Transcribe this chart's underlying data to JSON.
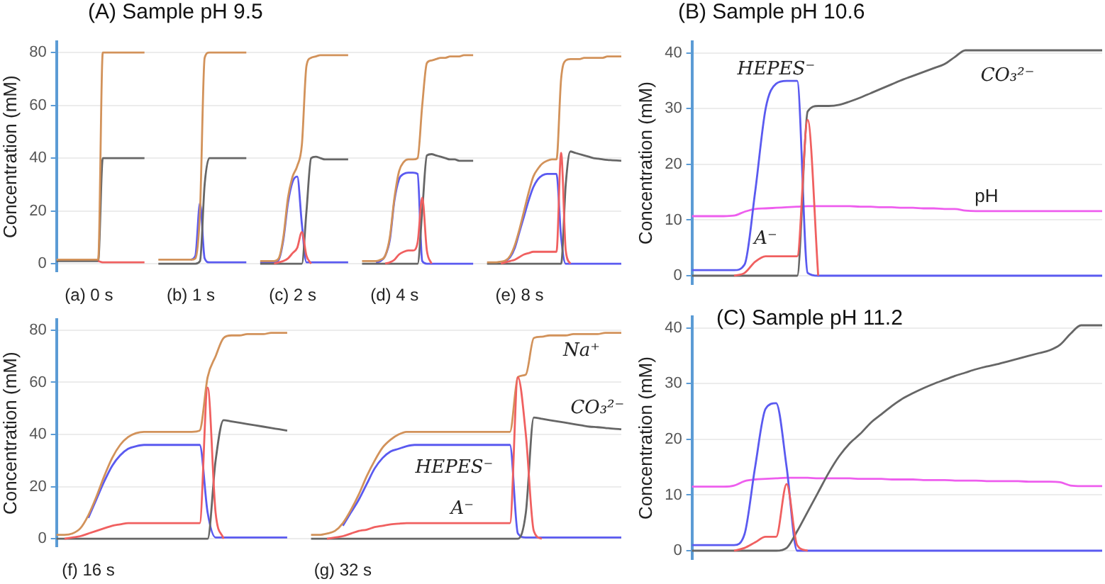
{
  "chart_data": [
    {
      "type": "line",
      "title": "(A) Sample pH 9.5",
      "ylabel": "Concentration (mM)",
      "marker": "none",
      "grid": "y",
      "ylim": [
        -3,
        84
      ],
      "yticks": [
        0,
        20,
        40,
        60,
        80
      ],
      "categories": [
        null,
        null,
        null,
        null,
        null,
        null,
        null,
        "(a) 0 s",
        null,
        null,
        null,
        null,
        null,
        null,
        null,
        null,
        null,
        null,
        null,
        null,
        null,
        null,
        null,
        null,
        null,
        null,
        null,
        null,
        null,
        "(b) 1 s",
        null,
        null,
        null,
        null,
        null,
        null,
        null,
        null,
        null,
        null,
        null,
        null,
        null,
        null,
        null,
        null,
        null,
        null,
        null,
        null,
        null,
        "(c) 2 s",
        null,
        null,
        null,
        null,
        null,
        null,
        null,
        null,
        null,
        null,
        null,
        null,
        null,
        null,
        null,
        null,
        null,
        null,
        null,
        null,
        null,
        "(d) 4 s",
        null,
        null,
        null,
        null,
        null,
        null,
        null,
        null,
        null,
        null,
        null,
        null,
        null,
        null,
        null,
        null,
        null,
        null,
        null,
        null,
        null,
        null,
        null,
        null,
        null,
        null,
        "(e) 8 s",
        null,
        null,
        null,
        null,
        null,
        null,
        null,
        null,
        null,
        null,
        null,
        null,
        null,
        null,
        null,
        null,
        null,
        null,
        null,
        null,
        null,
        null
      ],
      "series": [
        {
          "color": "#d2925a",
          "values": [
            1.5,
            1.5,
            1.5,
            1.5,
            1.5,
            1.5,
            1.5,
            1.5,
            1.5,
            1.5,
            80,
            80,
            80,
            80,
            80,
            80,
            80,
            80,
            80,
            80,
            null,
            null,
            1.5,
            1.5,
            1.5,
            1.5,
            1.5,
            1.5,
            1.5,
            1.5,
            2,
            20,
            78,
            80,
            80,
            80,
            80,
            80,
            80,
            80,
            80,
            80,
            null,
            null,
            1,
            1,
            1,
            1,
            2,
            10,
            25,
            33,
            37,
            45,
            75,
            78,
            78.5,
            79,
            79,
            79,
            79,
            79,
            79,
            79,
            null,
            null,
            1,
            1,
            1,
            1,
            1.5,
            3,
            10,
            25,
            35,
            38.5,
            39.5,
            39.5,
            40,
            60,
            76,
            77,
            77.5,
            78,
            78,
            78.5,
            78.5,
            78.5,
            79,
            79,
            79,
            null,
            null,
            0.5,
            0.5,
            0.5,
            0.8,
            1.2,
            3,
            7,
            13,
            20,
            27,
            33,
            36,
            38,
            39,
            39.5,
            39.5,
            70,
            77,
            77.5,
            77.5,
            77.5,
            78,
            78,
            78,
            78,
            78,
            78.5,
            78.5,
            78.5,
            78.5
          ]
        },
        {
          "color": "#666666",
          "values": [
            1,
            1,
            1,
            1,
            1,
            1,
            1,
            1,
            1,
            1,
            40,
            40,
            40,
            40,
            40,
            40,
            40,
            40,
            40,
            40,
            null,
            null,
            0,
            0,
            0,
            0,
            0,
            0,
            0,
            0,
            0,
            1,
            30,
            40,
            40,
            40,
            40,
            40,
            40,
            40,
            40,
            40,
            null,
            null,
            0,
            0,
            0,
            0,
            0,
            0,
            0,
            0,
            0,
            0,
            20,
            40,
            40.5,
            40,
            39.5,
            39.5,
            39.5,
            39.5,
            39.5,
            39.5,
            null,
            null,
            0,
            0,
            0,
            0,
            0,
            0,
            0,
            0,
            0,
            0,
            0,
            0,
            0,
            20,
            41,
            41.5,
            41,
            40.5,
            40,
            39.5,
            39.5,
            39,
            39,
            39,
            39,
            null,
            null,
            0,
            0,
            0,
            0,
            0,
            0,
            0,
            0,
            0,
            0,
            0,
            0,
            0,
            0,
            0,
            0,
            0,
            30,
            42.5,
            42,
            41.5,
            41,
            40.5,
            40,
            39.8,
            39.5,
            39.3,
            39.2,
            39.1,
            39
          ]
        },
        {
          "color": "#5a5af0",
          "values": [
            null,
            null,
            null,
            null,
            null,
            null,
            null,
            null,
            null,
            null,
            null,
            null,
            null,
            null,
            null,
            null,
            null,
            null,
            null,
            null,
            null,
            null,
            null,
            null,
            null,
            null,
            null,
            null,
            null,
            1.5,
            3,
            23,
            2,
            0.5,
            0.5,
            0.5,
            0.5,
            0.5,
            0.5,
            0.5,
            0.5,
            0.5,
            null,
            null,
            0.5,
            0.5,
            0.5,
            0.5,
            1.5,
            9,
            23,
            31,
            33,
            15,
            0.5,
            0.5,
            0.5,
            0.5,
            0.5,
            0.5,
            0.5,
            0.5,
            0.5,
            0.5,
            null,
            null,
            null,
            null,
            null,
            0.5,
            1,
            3,
            9,
            24,
            32,
            34,
            34.5,
            34.5,
            34,
            1,
            0,
            0,
            0,
            0,
            0,
            0,
            0,
            0,
            0,
            0,
            0,
            null,
            null,
            null,
            null,
            null,
            null,
            1,
            2.5,
            6,
            12,
            18,
            24,
            29,
            32,
            33.5,
            34,
            34,
            34,
            10,
            0,
            0,
            0,
            0,
            0,
            0,
            0,
            0,
            0,
            0,
            0,
            0,
            0
          ]
        },
        {
          "color": "#f06060",
          "values": [
            null,
            null,
            null,
            null,
            null,
            null,
            null,
            null,
            null,
            1,
            0.5,
            0.5,
            0.5,
            0.5,
            0.5,
            0.5,
            0.5,
            0.5,
            0.5,
            0.5,
            null,
            null,
            null,
            null,
            null,
            null,
            null,
            null,
            null,
            null,
            null,
            null,
            null,
            null,
            null,
            null,
            null,
            null,
            null,
            null,
            null,
            null,
            null,
            null,
            null,
            null,
            null,
            0,
            0.5,
            1,
            2,
            4,
            6,
            12,
            3,
            0,
            null,
            null,
            null,
            null,
            null,
            null,
            null,
            null,
            null,
            null,
            null,
            null,
            null,
            null,
            null,
            0,
            0.5,
            1.5,
            3.5,
            4.5,
            5,
            5,
            8,
            25,
            5,
            0,
            null,
            null,
            null,
            null,
            null,
            null,
            null,
            null,
            null,
            null,
            null,
            null,
            null,
            null,
            0,
            0.5,
            1,
            1.5,
            2.5,
            3.5,
            4,
            4.5,
            4.5,
            4.5,
            4.5,
            4.5,
            4.5,
            42,
            5,
            0,
            null,
            null,
            null,
            null,
            null,
            null,
            null,
            null,
            null,
            null,
            null
          ]
        }
      ]
    },
    {
      "type": "line",
      "ylabel": "Concentration (mM)",
      "marker": "none",
      "grid": "y",
      "ylim": [
        -3,
        84
      ],
      "yticks": [
        0,
        20,
        40,
        60,
        80
      ],
      "categories": [
        null,
        null,
        null,
        null,
        "(f) 16 s",
        null,
        null,
        null,
        null,
        null,
        null,
        null,
        null,
        null,
        null,
        null,
        null,
        null,
        null,
        null,
        null,
        null,
        null,
        null,
        null,
        null,
        null,
        null,
        null,
        null,
        null,
        null,
        null,
        null,
        null,
        null,
        "(g) 32 s",
        null,
        null,
        null,
        null,
        null,
        null,
        null,
        null,
        null,
        null,
        null,
        null,
        null,
        null,
        null,
        null,
        null,
        null,
        null,
        null,
        null,
        null,
        null,
        null,
        null,
        null,
        null,
        null,
        null,
        null,
        null,
        null,
        null,
        null,
        null
      ],
      "series": [
        {
          "name": "Na⁺",
          "color": "#d2925a",
          "values": [
            1.5,
            1.5,
            2,
            4,
            9,
            16,
            24,
            31,
            36,
            39,
            40.5,
            41,
            41,
            41,
            41,
            41,
            41,
            41,
            41.5,
            62,
            70,
            77,
            78,
            78,
            78.5,
            78.5,
            78.5,
            79,
            79,
            79,
            null,
            null,
            1.5,
            1.5,
            2,
            3,
            6,
            11,
            17,
            24,
            30,
            35,
            38,
            40,
            41,
            41,
            41,
            41,
            41,
            41,
            41,
            41,
            41,
            41,
            41,
            41,
            41,
            41,
            62,
            63,
            77,
            77.5,
            78,
            78,
            78,
            78.5,
            78.5,
            78.5,
            78.5,
            79,
            79,
            79
          ]
        },
        {
          "name": "CO₃²⁻",
          "color": "#666666",
          "values": [
            0,
            0,
            0,
            0,
            0,
            0,
            0,
            0,
            0,
            0,
            0,
            0,
            0,
            0,
            0,
            0,
            0,
            0,
            0,
            0,
            30,
            45.5,
            45,
            44.5,
            44,
            43.5,
            43,
            42.5,
            42,
            41.5,
            null,
            null,
            0,
            0,
            0,
            0,
            0,
            0,
            0,
            0,
            0,
            0,
            0,
            0,
            0,
            0,
            0,
            0,
            0,
            0,
            0,
            0,
            0,
            0,
            0,
            0,
            0,
            0,
            0,
            10,
            46.5,
            46,
            45.5,
            45,
            44.5,
            44,
            43.5,
            43,
            42.8,
            42.5,
            42.2,
            42
          ]
        },
        {
          "name": "HEPES⁻",
          "color": "#5a5af0",
          "values": [
            null,
            null,
            null,
            null,
            8,
            15,
            22,
            28,
            32,
            34.5,
            35.5,
            36,
            36,
            36,
            36,
            36,
            36,
            36,
            36,
            10,
            0.5,
            0.5,
            0.5,
            0.5,
            0.5,
            0.5,
            0.5,
            0.5,
            0.5,
            0.5,
            null,
            null,
            null,
            null,
            null,
            null,
            5,
            10,
            15,
            21,
            27,
            31,
            33.5,
            34.5,
            35.5,
            36,
            36,
            36,
            36,
            36,
            36,
            36,
            36,
            36,
            36,
            36,
            36,
            36,
            2,
            0.5,
            0.5,
            0.5,
            0.5,
            0.5,
            0.5,
            0.5,
            0.5,
            0.5,
            0.5,
            0.5,
            0.5,
            0.5
          ]
        },
        {
          "name": "A⁻",
          "color": "#f06060",
          "values": [
            null,
            0,
            0.5,
            1,
            2,
            3,
            4,
            5,
            5.5,
            6,
            6,
            6,
            6,
            6,
            6,
            6,
            6,
            6,
            6,
            58,
            10,
            0,
            null,
            null,
            null,
            null,
            null,
            null,
            null,
            null,
            null,
            null,
            null,
            null,
            0,
            0.5,
            1,
            2,
            3,
            3.5,
            4.5,
            5,
            5.5,
            5.8,
            6,
            6,
            6,
            6,
            6,
            6,
            6,
            6,
            6,
            6,
            6,
            6,
            6,
            6,
            62,
            40,
            3,
            0,
            null,
            null,
            null,
            null,
            null,
            null,
            null,
            null,
            null,
            null
          ]
        }
      ]
    },
    {
      "type": "line",
      "title": "(B) Sample pH 10.6",
      "ylabel": "Concentration (mM)",
      "marker": "none",
      "grid": "y",
      "tick_labels": "y",
      "ylim": [
        -1.5,
        42
      ],
      "yticks": [
        0,
        10,
        20,
        30,
        40
      ],
      "categories": [
        null,
        null,
        null,
        null,
        null,
        null,
        null,
        null,
        null,
        null,
        null,
        null,
        null,
        null,
        null,
        null,
        null,
        null,
        null,
        null,
        null,
        null,
        null,
        null,
        null,
        null,
        null,
        null,
        null,
        null,
        null,
        null,
        null,
        null,
        null,
        null,
        null,
        null,
        null,
        null
      ],
      "series": [
        {
          "name": "CO₃²⁻",
          "color": "#666666",
          "values": [
            0,
            0,
            0,
            0,
            0,
            0,
            0,
            0,
            0,
            0,
            0,
            29.5,
            30.5,
            30.5,
            30.7,
            31.3,
            32,
            32.8,
            33.6,
            34.4,
            35.2,
            35.9,
            36.6,
            37.3,
            38,
            39.3,
            40.5,
            40.5,
            40.5,
            40.5,
            40.5,
            40.5,
            40.5,
            40.5,
            40.5,
            40.5,
            40.5,
            40.5,
            40.5,
            40.5
          ]
        },
        {
          "name": "HEPES⁻",
          "color": "#5a5af0",
          "values": [
            1,
            1,
            1,
            1,
            1,
            2,
            15,
            30,
            34.5,
            35,
            35,
            0.5,
            0,
            0,
            0,
            0,
            0,
            0,
            0,
            0,
            0,
            0,
            0,
            0,
            0,
            0,
            0,
            0,
            0,
            0,
            0,
            0,
            0,
            0,
            0,
            0,
            0,
            0,
            0,
            0
          ]
        },
        {
          "name": "A⁻",
          "color": "#f06060",
          "values": [
            null,
            null,
            null,
            null,
            0,
            0.5,
            2.5,
            3.5,
            3.5,
            3.5,
            3.5,
            28,
            0,
            null,
            null,
            null,
            null,
            null,
            null,
            null,
            null,
            null,
            null,
            null,
            null,
            null,
            null,
            null,
            null,
            null,
            null,
            null,
            null,
            null,
            null,
            null,
            null,
            null,
            null,
            null
          ]
        },
        {
          "name": "pH",
          "color": "#ee5eee",
          "values": [
            10.7,
            10.7,
            10.7,
            10.7,
            10.8,
            11.5,
            12,
            12.1,
            12.2,
            12.3,
            12.4,
            12.5,
            12.5,
            12.5,
            12.5,
            12.5,
            12.4,
            12.4,
            12.3,
            12.3,
            12.2,
            12.2,
            12.1,
            12.1,
            12,
            12,
            11.7,
            11.6,
            11.6,
            11.6,
            11.6,
            11.6,
            11.6,
            11.6,
            11.6,
            11.6,
            11.6,
            11.6,
            11.6,
            11.6
          ]
        }
      ]
    },
    {
      "type": "line",
      "title": "(C) Sample pH 11.2",
      "ylabel": "Concentration (mM)",
      "marker": "none",
      "grid": "y",
      "tick_labels": "y",
      "ylim": [
        -1.5,
        42
      ],
      "yticks": [
        0,
        10,
        20,
        30,
        40
      ],
      "categories": [
        null,
        null,
        null,
        null,
        null,
        null,
        null,
        null,
        null,
        null,
        null,
        null,
        null,
        null,
        null,
        null,
        null,
        null,
        null,
        null,
        null,
        null,
        null,
        null,
        null,
        null,
        null,
        null,
        null,
        null,
        null,
        null,
        null,
        null,
        null,
        null,
        null,
        null,
        null,
        null
      ],
      "series": [
        {
          "color": "#666666",
          "values": [
            0,
            0,
            0,
            0,
            0,
            0,
            0,
            0,
            0,
            0.5,
            3.5,
            7,
            10.5,
            14,
            17,
            19.3,
            21,
            23,
            24.5,
            26,
            27.3,
            28.3,
            29.2,
            30,
            30.7,
            31.4,
            32,
            32.6,
            33.1,
            33.5,
            34,
            34.5,
            35,
            35.5,
            36,
            37,
            39,
            40.5,
            40.5,
            40.5
          ]
        },
        {
          "color": "#5a5af0",
          "values": [
            1,
            1,
            1,
            1,
            1,
            3,
            15,
            25.5,
            26.5,
            15,
            0,
            0,
            0,
            0,
            0,
            0,
            0,
            0,
            0,
            0,
            0,
            0,
            0,
            0,
            0,
            0,
            0,
            0,
            0,
            0,
            0,
            0,
            0,
            0,
            0,
            0,
            0,
            0,
            0,
            0
          ]
        },
        {
          "color": "#f06060",
          "values": [
            null,
            null,
            null,
            null,
            0,
            0.5,
            1.5,
            2.5,
            2.5,
            12,
            1,
            0,
            null,
            null,
            null,
            null,
            null,
            null,
            null,
            null,
            null,
            null,
            null,
            null,
            null,
            null,
            null,
            null,
            null,
            null,
            null,
            null,
            null,
            null,
            null,
            null,
            null,
            null,
            null,
            null
          ]
        },
        {
          "color": "#ee5eee",
          "values": [
            11.5,
            11.5,
            11.5,
            11.5,
            11.7,
            12.5,
            12.8,
            12.9,
            13,
            13.1,
            13.1,
            13.1,
            13,
            13,
            13,
            13,
            12.9,
            12.9,
            12.9,
            12.8,
            12.8,
            12.8,
            12.7,
            12.7,
            12.7,
            12.6,
            12.6,
            12.6,
            12.5,
            12.5,
            12.5,
            12.5,
            12.4,
            12.4,
            12.4,
            12.3,
            11.7,
            11.6,
            11.6,
            11.6
          ]
        }
      ]
    }
  ]
}
